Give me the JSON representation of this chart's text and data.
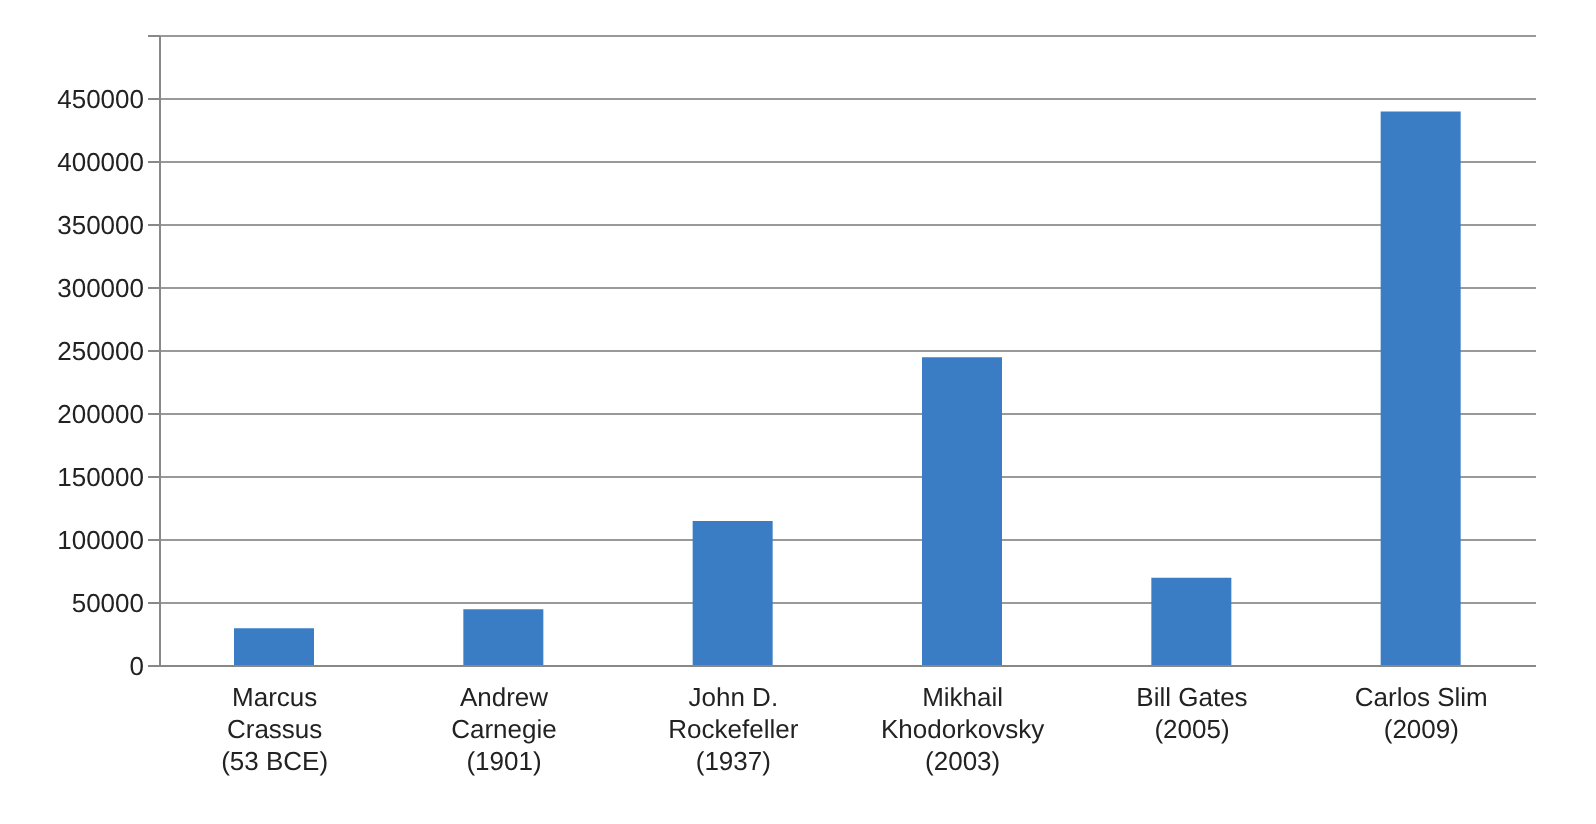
{
  "chart_data": {
    "type": "bar",
    "categories": [
      "Marcus\nCrassus\n(53 BCE)",
      "Andrew\nCarnegie\n(1901)",
      "John D.\nRockefeller\n(1937)",
      "Mikhail\nKhodorkovsky\n(2003)",
      "Bill Gates\n(2005)",
      "Carlos Slim\n(2009)"
    ],
    "values": [
      30000,
      45000,
      115000,
      245000,
      70000,
      440000
    ],
    "color": "#3a7dc4",
    "ylim": [
      0,
      500000
    ],
    "yticks": [
      0,
      50000,
      100000,
      150000,
      200000,
      250000,
      300000,
      350000,
      400000,
      450000,
      {
        "value": 500000,
        "label": null
      }
    ],
    "grid": "y"
  }
}
